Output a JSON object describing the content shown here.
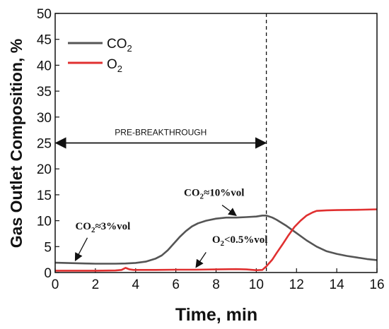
{
  "chart_data": {
    "type": "line",
    "xlabel": "Time, min",
    "ylabel": "Gas Outlet Composition, %",
    "xlim": [
      0,
      16
    ],
    "ylim": [
      0,
      50
    ],
    "xticks": [
      0,
      2,
      4,
      6,
      8,
      10,
      12,
      14,
      16
    ],
    "yticks": [
      0,
      5,
      10,
      15,
      20,
      25,
      30,
      35,
      40,
      45,
      50
    ],
    "grid": false,
    "legend_position": "top-left",
    "series": [
      {
        "name": "CO2",
        "name_main": "CO",
        "name_sub": "2",
        "color": "#555555",
        "x": [
          0,
          0.5,
          1,
          1.5,
          2,
          2.5,
          3,
          3.5,
          4,
          4.5,
          5,
          5.3,
          5.6,
          5.9,
          6.2,
          6.5,
          6.8,
          7.1,
          7.5,
          8,
          8.5,
          9,
          9.5,
          10,
          10.3,
          10.5,
          10.8,
          11,
          11.5,
          12,
          12.5,
          13,
          13.5,
          14,
          14.5,
          15,
          15.5,
          16
        ],
        "y": [
          1.9,
          1.85,
          1.8,
          1.75,
          1.7,
          1.7,
          1.7,
          1.75,
          1.85,
          2.1,
          2.7,
          3.3,
          4.3,
          5.6,
          6.9,
          8.0,
          8.9,
          9.5,
          10.0,
          10.4,
          10.6,
          10.6,
          10.7,
          10.8,
          11.0,
          11.0,
          10.6,
          10.2,
          9.0,
          7.6,
          6.2,
          5.0,
          4.1,
          3.6,
          3.2,
          2.9,
          2.6,
          2.4
        ]
      },
      {
        "name": "O2",
        "name_main": "O",
        "name_sub": "2",
        "color": "#e03030",
        "x": [
          0,
          1,
          2,
          3,
          3.3,
          3.5,
          3.7,
          3.9,
          4.2,
          5,
          6,
          7,
          8,
          9,
          9.5,
          10,
          10.3,
          10.5,
          10.8,
          11,
          11.3,
          11.6,
          11.9,
          12.2,
          12.5,
          12.8,
          13,
          13.5,
          14,
          15,
          16
        ],
        "y": [
          0.35,
          0.35,
          0.35,
          0.4,
          0.5,
          0.9,
          0.6,
          0.5,
          0.5,
          0.5,
          0.55,
          0.55,
          0.6,
          0.65,
          0.6,
          0.45,
          0.5,
          1.2,
          2.5,
          3.7,
          5.4,
          7.2,
          8.8,
          10.0,
          11.0,
          11.6,
          11.9,
          12.0,
          12.05,
          12.1,
          12.2
        ]
      }
    ],
    "vline_x": 10.5,
    "range_arrow": {
      "label": "PRE-BREAKTHROUGH",
      "x_from": 0,
      "x_to": 10.5,
      "y": 25
    },
    "annotations": [
      {
        "main": "CO",
        "sub": "2",
        "rest": "≈3%vol",
        "text_x": 1.0,
        "text_y": 8.3,
        "arrow_from": [
          1.6,
          6.7
        ],
        "arrow_to": [
          1.0,
          2.3
        ]
      },
      {
        "main": "CO",
        "sub": "2",
        "rest": "≈10%vol",
        "text_x": 6.4,
        "text_y": 14.8,
        "arrow_from": [
          8.3,
          13.0
        ],
        "arrow_to": [
          9.0,
          11.0
        ]
      },
      {
        "main": "O",
        "sub": "2",
        "rest": "<0.5%vol",
        "text_x": 7.8,
        "text_y": 5.7,
        "arrow_from": [
          7.5,
          3.9
        ],
        "arrow_to": [
          7.0,
          1.0
        ]
      }
    ]
  }
}
